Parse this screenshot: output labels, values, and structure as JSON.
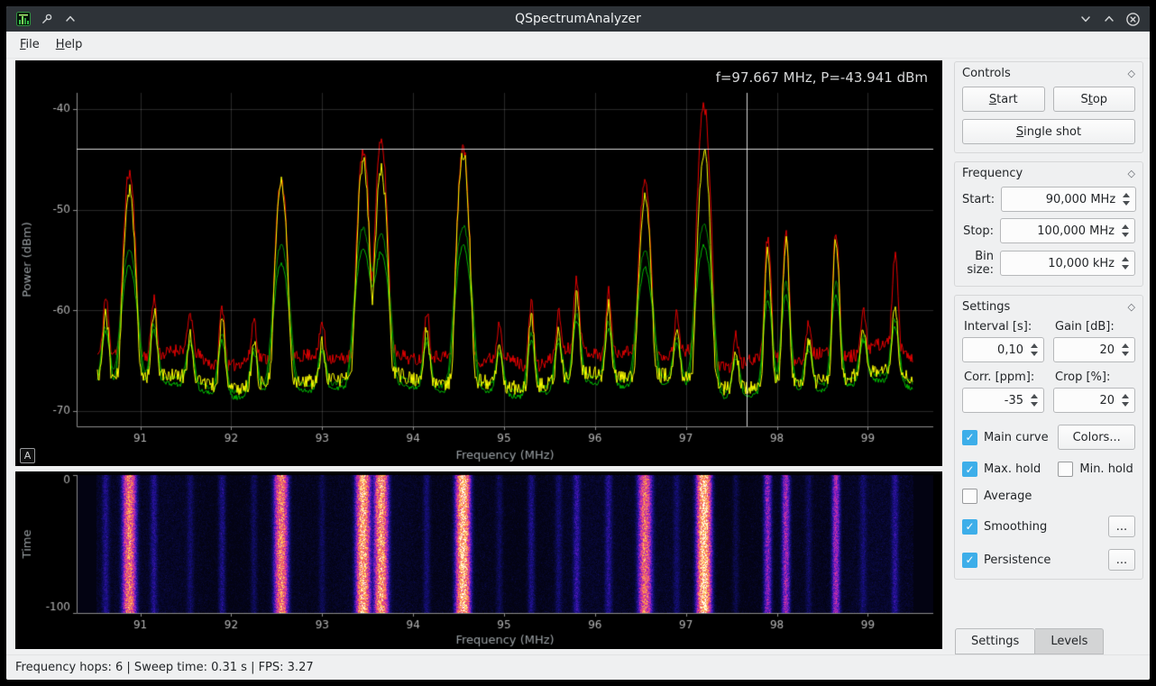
{
  "window": {
    "title": "QSpectrumAnalyzer"
  },
  "titlebar": {
    "left_icons": [
      "app-icon",
      "pin-icon",
      "keep-above-icon"
    ],
    "right_icons": [
      "minimize-icon",
      "maximize-icon",
      "close-icon"
    ]
  },
  "menubar": {
    "file": "&File",
    "help": "&Help"
  },
  "spectrum": {
    "cursor_label": "f=97.667 MHz, P=-43.941 dBm",
    "auto_range_button": "A"
  },
  "statusbar": {
    "text": "Frequency hops: 6 | Sweep time: 0.31 s | FPS: 3.27"
  },
  "controls": {
    "title": "Controls",
    "start": "&Start",
    "stop": "S&top",
    "single_shot": "&Single shot"
  },
  "frequency": {
    "title": "Frequency",
    "rows": [
      {
        "label": "Start:",
        "value": "90,000 MHz"
      },
      {
        "label": "Stop:",
        "value": "100,000 MHz"
      },
      {
        "label": "Bin size:",
        "value": "10,000 kHz"
      }
    ]
  },
  "settings": {
    "title": "Settings",
    "interval": {
      "label": "Interval [s]:",
      "value": "0,10"
    },
    "gain": {
      "label": "Gain [dB]:",
      "value": "20"
    },
    "corr": {
      "label": "Corr. [ppm]:",
      "value": "-35"
    },
    "crop": {
      "label": "Crop [%]:",
      "value": "20"
    },
    "main_curve": {
      "label": "Main curve",
      "checked": true
    },
    "colors_button": "Colors...",
    "max_hold": {
      "label": "Max. hold",
      "checked": true
    },
    "min_hold": {
      "label": "Min. hold",
      "checked": false
    },
    "average": {
      "label": "Average",
      "checked": false
    },
    "smoothing": {
      "label": "Smoothing",
      "checked": true
    },
    "smoothing_more_button": "...",
    "persistence": {
      "label": "Persistence",
      "checked": true
    },
    "persistence_more_button": "..."
  },
  "tabs": [
    {
      "label": "Settings",
      "active": true
    },
    {
      "label": "Levels",
      "active": false
    }
  ],
  "colors": {
    "accent": "#3daee9",
    "titlebar_bg": "#2e3338",
    "window_bg": "#eff0f1",
    "plot_bg": "#000000",
    "main_curve": "#ffff00",
    "max_hold_curve": "#e40000",
    "persistence_curve": "#00b800"
  },
  "chart_data": [
    {
      "type": "line",
      "title": "Spectrum plot",
      "xlabel": "Frequency (MHz)",
      "ylabel": "Power (dBm)",
      "xlim": [
        90.3,
        99.72
      ],
      "ylim": [
        -71.5,
        -38.4
      ],
      "xticks": [
        91,
        92,
        93,
        94,
        95,
        96,
        97,
        98,
        99
      ],
      "yticks": [
        -40,
        -50,
        -60,
        -70
      ],
      "span": [
        90.52,
        99.5
      ],
      "noise_floor_dbm": -67,
      "crosshair": {
        "f": 97.667,
        "p": -43.941
      },
      "series": [
        {
          "name": "max_hold",
          "color": "#e40000"
        },
        {
          "name": "persistence",
          "color": "#00b800"
        },
        {
          "name": "main",
          "color": "#ffff00"
        }
      ],
      "peaks": [
        {
          "f": 90.62,
          "main": -61.8,
          "max": -60.8
        },
        {
          "f": 90.88,
          "main": -48.2,
          "max": -47.2
        },
        {
          "f": 91.15,
          "main": -61.5,
          "max": -60.3
        },
        {
          "f": 91.55,
          "main": -64.5,
          "max": -63.5
        },
        {
          "f": 91.9,
          "main": -61.0,
          "max": -60.0
        },
        {
          "f": 92.25,
          "main": -64.5,
          "max": -63.2
        },
        {
          "f": 92.55,
          "main": -47.4,
          "max": -46.9
        },
        {
          "f": 93.0,
          "main": -65.5,
          "max": -64.3
        },
        {
          "f": 93.45,
          "main": -46.0,
          "max": -45.2
        },
        {
          "f": 93.65,
          "main": -47.0,
          "max": -44.9
        },
        {
          "f": 94.15,
          "main": -63.0,
          "max": -61.8
        },
        {
          "f": 94.55,
          "main": -44.2,
          "max": -43.8
        },
        {
          "f": 94.95,
          "main": -65.0,
          "max": -63.8
        },
        {
          "f": 95.3,
          "main": -61.0,
          "max": -59.8
        },
        {
          "f": 95.6,
          "main": -64.0,
          "max": -63.0
        },
        {
          "f": 95.8,
          "main": -59.8,
          "max": -58.8
        },
        {
          "f": 96.15,
          "main": -61.0,
          "max": -59.8
        },
        {
          "f": 96.55,
          "main": -48.8,
          "max": -48.0
        },
        {
          "f": 96.9,
          "main": -64.5,
          "max": -63.3
        },
        {
          "f": 97.2,
          "main": -43.9,
          "max": -40.0
        },
        {
          "f": 97.55,
          "main": -65.5,
          "max": -64.5
        },
        {
          "f": 97.9,
          "main": -54.0,
          "max": -53.2
        },
        {
          "f": 98.1,
          "main": -53.3,
          "max": -52.8
        },
        {
          "f": 98.35,
          "main": -65.0,
          "max": -63.8
        },
        {
          "f": 98.65,
          "main": -53.3,
          "max": -52.8
        },
        {
          "f": 98.95,
          "main": -64.5,
          "max": -63.3
        },
        {
          "f": 99.3,
          "main": -61.0,
          "max": -56.5
        }
      ]
    },
    {
      "type": "heatmap",
      "title": "Waterfall",
      "xlabel": "Frequency (MHz)",
      "ylabel": "Time",
      "xlim": [
        90.3,
        99.72
      ],
      "ylim": [
        -100,
        0
      ],
      "xticks": [
        91,
        92,
        93,
        94,
        95,
        96,
        97,
        98,
        99
      ],
      "yticks": [
        0,
        -100
      ]
    }
  ]
}
